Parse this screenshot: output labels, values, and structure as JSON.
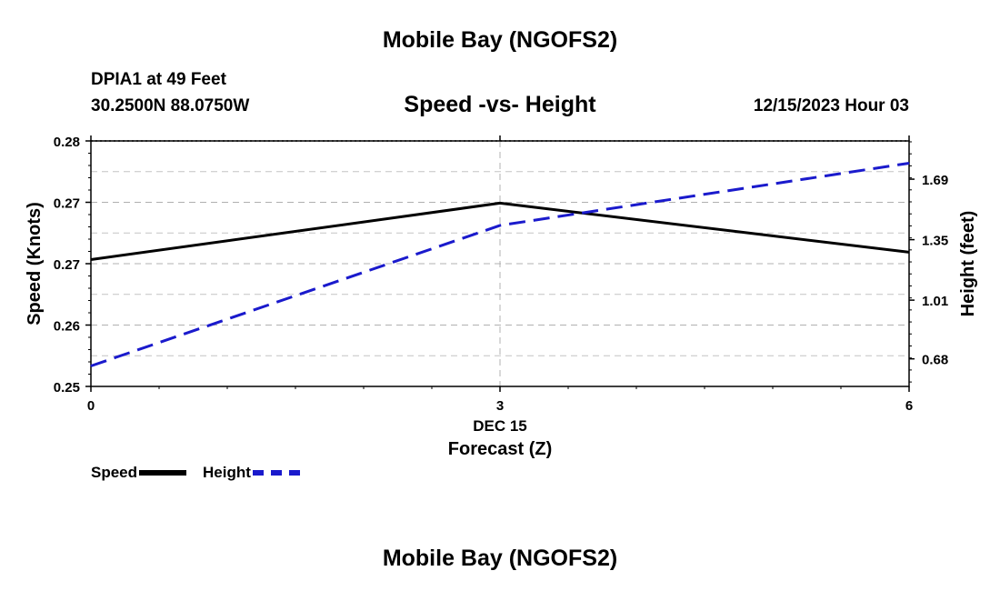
{
  "header": {
    "title": "Mobile Bay (NGOFS2)",
    "station": "DPIA1 at 49 Feet",
    "coords": "30.2500N  88.0750W",
    "subtitle": "Speed -vs- Height",
    "datetime": "12/15/2023 Hour 03"
  },
  "footer": {
    "title": "Mobile Bay (NGOFS2)"
  },
  "chart_data": {
    "type": "line",
    "title": "Speed -vs- Height",
    "xlabel": "Forecast (Z)",
    "date_label": "DEC 15",
    "x_ticks": [
      "0",
      "3",
      "6"
    ],
    "xlim": [
      0,
      6
    ],
    "ylabel_left": "Speed (Knots)",
    "ylabel_right": "Height (feet)",
    "y_left_ticks": [
      "0.28",
      "0.27",
      "0.27",
      "0.26",
      "0.25"
    ],
    "y_left_lim": [
      0.25,
      0.28
    ],
    "y_right_ticks": [
      "1.69",
      "1.35",
      "1.01",
      "0.68"
    ],
    "y_right_tick_values": [
      1.69,
      1.35,
      1.01,
      0.68
    ],
    "y_right_lim": [
      0.525,
      1.905
    ],
    "grid": true,
    "legend_position": "bottom-left",
    "series": [
      {
        "name": "Speed",
        "axis": "left",
        "color": "#000000",
        "style": "solid",
        "x": [
          0,
          3,
          6
        ],
        "values": [
          0.2655,
          0.2724,
          0.2664
        ]
      },
      {
        "name": "Height",
        "axis": "right",
        "color": "#1a1acc",
        "style": "dashed",
        "x": [
          0,
          3,
          6
        ],
        "values": [
          0.64,
          1.43,
          1.78
        ]
      }
    ]
  }
}
